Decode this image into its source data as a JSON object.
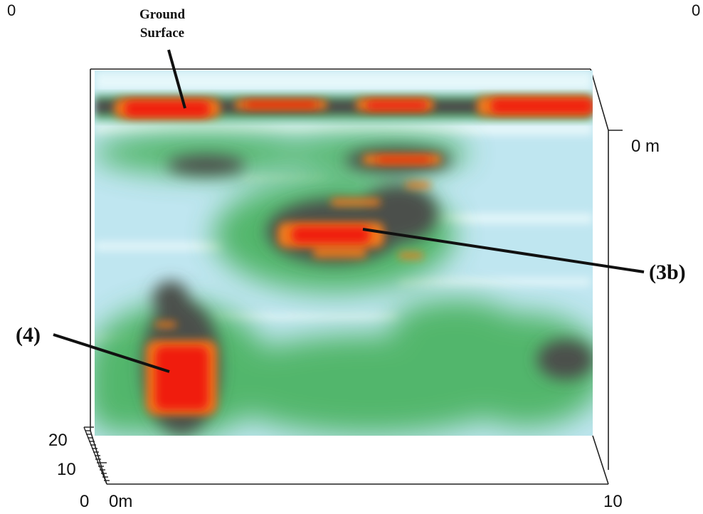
{
  "labels": {
    "ground_surface_line1": "Ground",
    "ground_surface_line2": "Surface",
    "callout_3b": "(3b)",
    "callout_4": "(4)"
  },
  "axes": {
    "top_left_corner": "0",
    "top_right_corner": "0",
    "depth_label": "0 m",
    "y_tick_20": "20",
    "y_tick_10": "10",
    "origin": "0",
    "x_start": "0m",
    "x_end": "10"
  },
  "colors": {
    "background_field": "#bfe6f0",
    "light_band": "#e6f7fb",
    "green": "#3fae55",
    "dark_gray": "#4b4f4b",
    "orange": "#f07a1a",
    "red": "#f01b10",
    "frame": "#222222"
  }
}
